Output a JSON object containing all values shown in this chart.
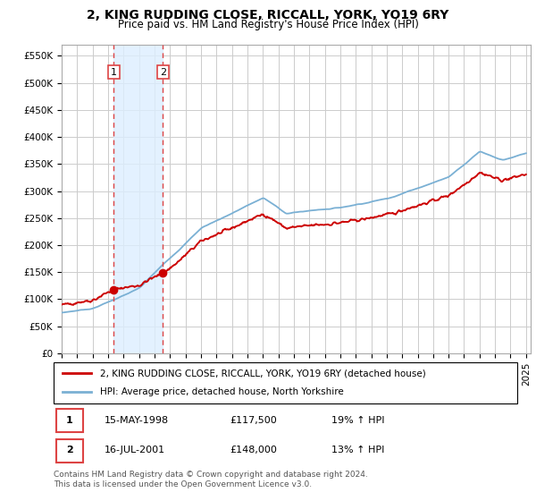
{
  "title": "2, KING RUDDING CLOSE, RICCALL, YORK, YO19 6RY",
  "subtitle": "Price paid vs. HM Land Registry's House Price Index (HPI)",
  "ylim": [
    0,
    570000
  ],
  "yticks": [
    0,
    50000,
    100000,
    150000,
    200000,
    250000,
    300000,
    350000,
    400000,
    450000,
    500000,
    550000
  ],
  "ytick_labels": [
    "£0",
    "£50K",
    "£100K",
    "£150K",
    "£200K",
    "£250K",
    "£300K",
    "£350K",
    "£400K",
    "£450K",
    "£500K",
    "£550K"
  ],
  "background_color": "#ffffff",
  "plot_bg_color": "#ffffff",
  "grid_color": "#cccccc",
  "red_line_color": "#cc0000",
  "blue_line_color": "#7ab0d4",
  "fill_color": "#ddeeff",
  "vline_color": "#dd4444",
  "transaction1_date_num": 1998.37,
  "transaction2_date_num": 2001.54,
  "transaction1_price": 117500,
  "transaction2_price": 148000,
  "legend_line1": "2, KING RUDDING CLOSE, RICCALL, YORK, YO19 6RY (detached house)",
  "legend_line2": "HPI: Average price, detached house, North Yorkshire",
  "table_row1": [
    "1",
    "15-MAY-1998",
    "£117,500",
    "19% ↑ HPI"
  ],
  "table_row2": [
    "2",
    "16-JUL-2001",
    "£148,000",
    "13% ↑ HPI"
  ],
  "footer": "Contains HM Land Registry data © Crown copyright and database right 2024.\nThis data is licensed under the Open Government Licence v3.0.",
  "title_fontsize": 10,
  "subtitle_fontsize": 8.5,
  "tick_fontsize": 7.5,
  "legend_fontsize": 7.5,
  "table_fontsize": 8,
  "footer_fontsize": 6.5
}
